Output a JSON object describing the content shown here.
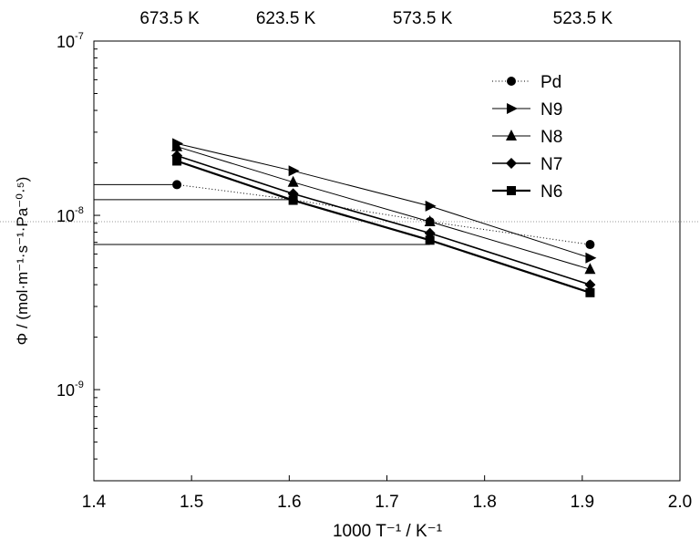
{
  "chart_data": {
    "type": "scatter",
    "title": "",
    "xlabel": "1000 T⁻¹ / K⁻¹",
    "ylabel": "Φ / (mol·m⁻¹·s⁻¹·Pa⁻⁰·⁵)",
    "xlim": [
      1.4,
      2.0
    ],
    "ylim": [
      3e-10,
      1e-07
    ],
    "y_scale": "log",
    "x_ticks": [
      1.4,
      1.5,
      1.6,
      1.7,
      1.8,
      1.9,
      2.0
    ],
    "x_tick_labels": [
      "1.4",
      "1.5",
      "1.6",
      "1.7",
      "1.8",
      "1.9",
      "2.0"
    ],
    "y_ticks": [
      1e-09,
      1e-08,
      1e-07
    ],
    "y_tick_labels": [
      {
        "base": "10",
        "exp": "-9"
      },
      {
        "base": "10",
        "exp": "-8"
      },
      {
        "base": "10",
        "exp": "-7"
      }
    ],
    "top_axis": {
      "label_positions": [
        1.485,
        1.604,
        1.744,
        1.908
      ],
      "labels": [
        "673.5 K",
        "623.5 K",
        "573.5 K",
        "523.5 K"
      ]
    },
    "grid": false,
    "legend_position": "top-right",
    "series": [
      {
        "name": "Pd",
        "marker": "circle",
        "line": "dotted",
        "x": [
          1.485,
          1.604,
          1.744,
          1.908
        ],
        "y": [
          1.5e-08,
          1.23e-08,
          9.2e-09,
          6.8e-09
        ]
      },
      {
        "name": "N9",
        "marker": "triangle-right",
        "line": "thin",
        "x": [
          1.485,
          1.604,
          1.744,
          1.908
        ],
        "y": [
          2.58e-08,
          1.8e-08,
          1.13e-08,
          5.7e-09
        ]
      },
      {
        "name": "N8",
        "marker": "triangle-up",
        "line": "thin",
        "x": [
          1.485,
          1.604,
          1.744,
          1.908
        ],
        "y": [
          2.48e-08,
          1.55e-08,
          9.2e-09,
          4.9e-09
        ]
      },
      {
        "name": "N7",
        "marker": "diamond",
        "line": "medium",
        "x": [
          1.485,
          1.604,
          1.744,
          1.908
        ],
        "y": [
          2.2e-08,
          1.33e-08,
          7.9e-09,
          4e-09
        ]
      },
      {
        "name": "N6",
        "marker": "square",
        "line": "thick",
        "x": [
          1.485,
          1.604,
          1.744,
          1.908
        ],
        "y": [
          2.05e-08,
          1.22e-08,
          7.2e-09,
          3.6e-09
        ]
      }
    ],
    "annotations": {
      "reference_levels": [
        1.5e-08,
        1.23e-08,
        9.2e-09,
        6.8e-09
      ]
    }
  }
}
